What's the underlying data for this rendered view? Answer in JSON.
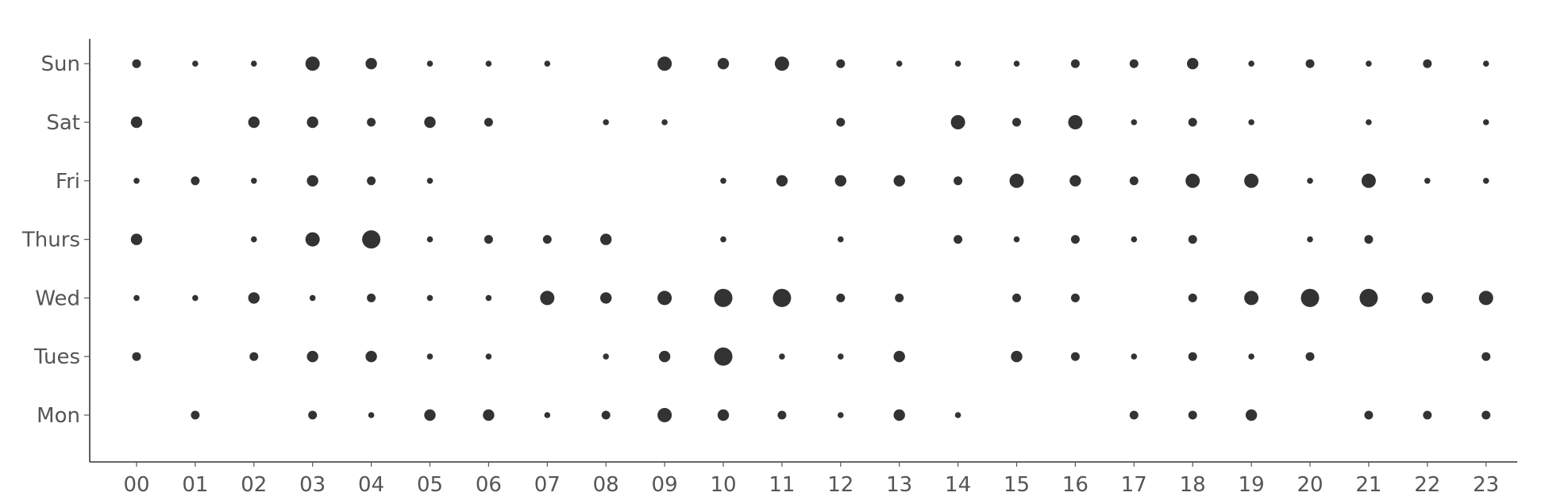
{
  "chart_data": {
    "type": "scatter",
    "subtype": "punchcard",
    "title": "",
    "xlabel": "",
    "ylabel": "",
    "x_categories": [
      "00",
      "01",
      "02",
      "03",
      "04",
      "05",
      "06",
      "07",
      "08",
      "09",
      "10",
      "11",
      "12",
      "13",
      "14",
      "15",
      "16",
      "17",
      "18",
      "19",
      "20",
      "21",
      "22",
      "23"
    ],
    "y_categories": [
      "Mon",
      "Tues",
      "Wed",
      "Thurs",
      "Fri",
      "Sat",
      "Sun"
    ],
    "size_scale": "relative count, 1 (smallest) to 5 (largest)",
    "grid": false,
    "legend": "none",
    "colors": {
      "marker": "#333333",
      "axis": "#333333",
      "tick_text": "#555555"
    },
    "series": [
      {
        "day": "Mon",
        "sizes": [
          0,
          2,
          0,
          2,
          1,
          3,
          3,
          1,
          2,
          4,
          3,
          2,
          1,
          3,
          1,
          0,
          0,
          2,
          2,
          3,
          0,
          2,
          2,
          2
        ]
      },
      {
        "day": "Tues",
        "sizes": [
          2,
          0,
          2,
          3,
          3,
          1,
          1,
          0,
          1,
          3,
          5,
          1,
          1,
          3,
          0,
          3,
          2,
          1,
          2,
          1,
          2,
          0,
          0,
          2
        ]
      },
      {
        "day": "Wed",
        "sizes": [
          1,
          1,
          3,
          1,
          2,
          1,
          1,
          4,
          3,
          4,
          5,
          5,
          2,
          2,
          0,
          2,
          2,
          0,
          2,
          4,
          5,
          5,
          3,
          4
        ]
      },
      {
        "day": "Thurs",
        "sizes": [
          3,
          0,
          1,
          4,
          5,
          1,
          2,
          2,
          3,
          0,
          1,
          0,
          1,
          0,
          2,
          1,
          2,
          1,
          2,
          0,
          1,
          2,
          0,
          0
        ]
      },
      {
        "day": "Fri",
        "sizes": [
          1,
          2,
          1,
          3,
          2,
          1,
          0,
          0,
          0,
          0,
          1,
          3,
          3,
          3,
          2,
          4,
          3,
          2,
          4,
          4,
          1,
          4,
          1,
          1
        ]
      },
      {
        "day": "Sat",
        "sizes": [
          3,
          0,
          3,
          3,
          2,
          3,
          2,
          0,
          1,
          1,
          0,
          0,
          2,
          0,
          4,
          2,
          4,
          1,
          2,
          1,
          0,
          1,
          0,
          1
        ]
      },
      {
        "day": "Sun",
        "sizes": [
          2,
          1,
          1,
          4,
          3,
          1,
          1,
          1,
          0,
          4,
          3,
          4,
          2,
          1,
          1,
          1,
          2,
          2,
          3,
          1,
          2,
          1,
          2,
          1
        ]
      }
    ]
  }
}
